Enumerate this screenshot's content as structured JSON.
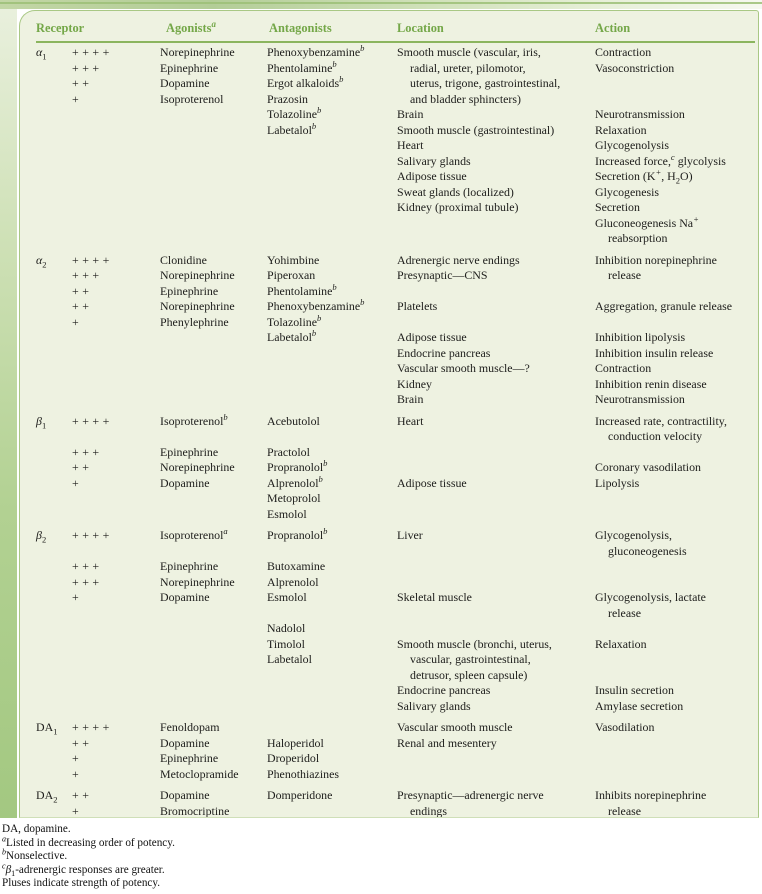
{
  "page": {
    "accent_green": "#74a748",
    "rule_green": "#8bb55e",
    "border_green": "#a9c885",
    "panel_bg": "#eef2e1",
    "stripe_top": "#e9f0dd",
    "stripe_bottom": "#a3c881"
  },
  "table": {
    "headers": [
      "Receptor",
      "Agonists^a",
      "Antagonists",
      "Location",
      "Action"
    ],
    "sections": [
      {
        "receptor": "α~1",
        "rows": [
          {
            "potency": "++++",
            "agonist": "Norepinephrine",
            "antagonist": "Phenoxybenzamine^b",
            "location": "Smooth muscle (vascular, iris,",
            "action": "Contraction"
          },
          {
            "potency": "+++",
            "agonist": "Epinephrine",
            "antagonist": "Phentolamine^b",
            "location": "radial, ureter, pilomotor,",
            "loc_indent": true,
            "action": "Vasoconstriction"
          },
          {
            "potency": "++",
            "agonist": "Dopamine",
            "antagonist": "Ergot alkaloids^b",
            "location": "uterus, trigone, gastrointestinal,",
            "loc_indent": true
          },
          {
            "potency": "+",
            "agonist": "Isoproterenol",
            "antagonist": "Prazosin",
            "location": "and bladder sphincters)",
            "loc_indent": true
          },
          {
            "antagonist": "Tolazoline^b",
            "location": "Brain",
            "action": "Neurotransmission"
          },
          {
            "antagonist": "Labetalol^b",
            "location": "Smooth muscle (gastrointestinal)",
            "action": "Relaxation"
          },
          {
            "location": "Heart",
            "action": "Glycogenolysis"
          },
          {
            "location": "Salivary glands",
            "action": "Increased force,^c glycolysis"
          },
          {
            "location": "Adipose tissue",
            "action": "Secretion (K^+, H~2O)"
          },
          {
            "location": "Sweat glands (localized)",
            "action": "Glycogenesis"
          },
          {
            "location": "Kidney (proximal tubule)",
            "action": "Secretion"
          },
          {
            "action": "Gluconeogenesis Na^+"
          },
          {
            "action": "reabsorption",
            "act_indent": true
          }
        ]
      },
      {
        "receptor": "α~2",
        "rows": [
          {
            "potency": "++++",
            "agonist": "Clonidine",
            "antagonist": "Yohimbine",
            "location": "Adrenergic nerve endings",
            "action": "Inhibition norepinephrine"
          },
          {
            "potency": "+++",
            "agonist": "Norepinephrine",
            "antagonist": "Piperoxan",
            "location": "Presynaptic—CNS",
            "action": "release",
            "act_indent": true
          },
          {
            "potency": "++",
            "agonist": "Epinephrine",
            "antagonist": "Phentolamine^b"
          },
          {
            "potency": "++",
            "agonist": "Norepinephrine",
            "antagonist": "Phenoxybenzamine^b",
            "location": "Platelets",
            "action": "Aggregation, granule release"
          },
          {
            "potency": "+",
            "agonist": "Phenylephrine",
            "antagonist": "Tolazoline^b"
          },
          {
            "antagonist": "Labetalol^b",
            "location": "Adipose tissue",
            "action": "Inhibition lipolysis"
          },
          {
            "location": "Endocrine pancreas",
            "action": "Inhibition insulin release"
          },
          {
            "location": "Vascular smooth muscle—?",
            "action": "Contraction"
          },
          {
            "location": "Kidney",
            "action": "Inhibition renin disease"
          },
          {
            "location": "Brain",
            "action": "Neurotransmission"
          }
        ]
      },
      {
        "receptor": "β~1",
        "rows": [
          {
            "potency": "++++",
            "agonist": "Isoproterenol^b",
            "antagonist": "Acebutolol",
            "location": "Heart",
            "action": "Increased rate, contractility,"
          },
          {
            "action": "conduction velocity",
            "act_indent": true
          },
          {
            "potency": "+++",
            "agonist": "Epinephrine",
            "antagonist": "Practolol"
          },
          {
            "potency": "++",
            "agonist": "Norepinephrine",
            "antagonist": "Propranolol^b",
            "action": "Coronary vasodilation"
          },
          {
            "potency": "+",
            "agonist": "Dopamine",
            "antagonist": "Alprenolol^b",
            "location": "Adipose tissue",
            "action": "Lipolysis"
          },
          {
            "antagonist": "Metoprolol"
          },
          {
            "antagonist": "Esmolol"
          }
        ]
      },
      {
        "receptor": "β~2",
        "rows": [
          {
            "potency": "++++",
            "agonist": "Isoproterenol^a",
            "antagonist": "Propranolol^b",
            "location": "Liver",
            "action": "Glycogenolysis,"
          },
          {
            "action": "gluconeogenesis",
            "act_indent": true
          },
          {
            "potency": "+++",
            "agonist": "Epinephrine",
            "antagonist": "Butoxamine"
          },
          {
            "potency": "+++",
            "agonist": "Norepinephrine",
            "antagonist": "Alprenolol"
          },
          {
            "potency": "+",
            "agonist": "Dopamine",
            "antagonist": "Esmolol",
            "location": "Skeletal muscle",
            "action": "Glycogenolysis, lactate"
          },
          {
            "action": "release",
            "act_indent": true
          },
          {
            "antagonist": "Nadolol"
          },
          {
            "antagonist": "Timolol",
            "location": "Smooth muscle (bronchi, uterus,",
            "action": "Relaxation"
          },
          {
            "antagonist": "Labetalol",
            "location": "vascular, gastrointestinal,",
            "loc_indent": true
          },
          {
            "location": "detrusor, spleen capsule)",
            "loc_indent": true
          },
          {
            "location": "Endocrine pancreas",
            "action": "Insulin secretion"
          },
          {
            "location": "Salivary glands",
            "action": "Amylase secretion"
          }
        ]
      },
      {
        "receptor": "DA~1",
        "rows": [
          {
            "potency": "++++",
            "agonist": "Fenoldopam",
            "location": "Vascular smooth muscle",
            "action": "Vasodilation"
          },
          {
            "potency": "++",
            "agonist": "Dopamine",
            "antagonist": "Haloperidol",
            "location": "Renal and mesentery"
          },
          {
            "potency": "+",
            "agonist": "Epinephrine",
            "antagonist": "Droperidol"
          },
          {
            "potency": "+",
            "agonist": "Metoclopramide",
            "antagonist": "Phenothiazines"
          }
        ]
      },
      {
        "receptor": "DA~2",
        "rows": [
          {
            "potency": "++",
            "agonist": "Dopamine",
            "antagonist": "Domperidone",
            "location": "Presynaptic—adrenergic nerve",
            "action": "Inhibits norepinephrine"
          },
          {
            "potency": "+",
            "agonist": "Bromocriptine",
            "location": "endings",
            "loc_indent": true,
            "action": "release",
            "act_indent": true
          }
        ]
      }
    ]
  },
  "footnotes": [
    "DA, dopamine.",
    "^aListed in decreasing order of potency.",
    "^bNonselective.",
    "^cβ~1-adrenergic responses are greater.",
    "Pluses indicate strength of potency."
  ]
}
